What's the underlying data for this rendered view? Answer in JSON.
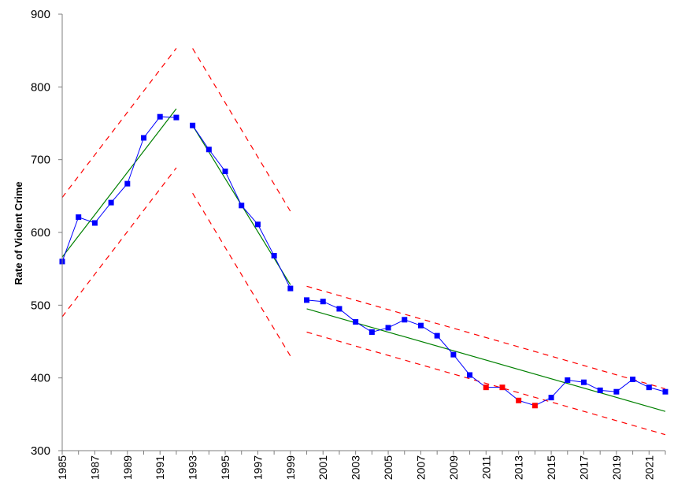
{
  "chart_data": {
    "type": "line",
    "title": "",
    "xlabel": "",
    "ylabel": "Rate of Violent Crime",
    "ylim": [
      300,
      900
    ],
    "xlim": [
      1985,
      2022
    ],
    "yticks": [
      300,
      400,
      500,
      600,
      700,
      800,
      900
    ],
    "xticks": [
      1985,
      1987,
      1989,
      1991,
      1993,
      1995,
      1997,
      1999,
      2001,
      2003,
      2005,
      2007,
      2009,
      2011,
      2013,
      2015,
      2017,
      2019,
      2021
    ],
    "grid": false,
    "legend": "none",
    "colors": {
      "data": "#0000ff",
      "signal": "#ff0000",
      "trend": "#008000",
      "limits": "#ff0000",
      "axis": "#7f7f7f"
    },
    "series": [
      {
        "style": "line-markers",
        "x": [
          1985,
          1986,
          1987,
          1988,
          1989,
          1990,
          1991,
          1992,
          1993,
          1994,
          1995,
          1996,
          1997,
          1998,
          1999,
          2000,
          2001,
          2002,
          2003,
          2004,
          2005,
          2006,
          2007,
          2008,
          2009,
          2010,
          2011,
          2012,
          2013,
          2014,
          2015,
          2016,
          2017,
          2018,
          2019,
          2020,
          2021,
          2022
        ],
        "values": [
          560,
          621,
          613,
          641,
          667,
          730,
          759,
          758,
          747,
          714,
          684,
          637,
          611,
          568,
          523,
          507,
          505,
          495,
          477,
          463,
          469,
          480,
          472,
          458,
          432,
          404,
          387,
          387,
          369,
          362,
          373,
          397,
          394,
          383,
          381,
          398,
          387,
          381
        ],
        "segments": [
          [
            1985,
            1992
          ],
          [
            1993,
            1999
          ],
          [
            2000,
            2022
          ]
        ],
        "highlight_x": [
          2011,
          2012,
          2013,
          2014
        ]
      },
      {
        "style": "trend",
        "segments": [
          {
            "x": [
              1985,
              1992
            ],
            "values": [
              566,
              770
            ]
          },
          {
            "x": [
              1993,
              1999
            ],
            "values": [
              747,
              528
            ]
          },
          {
            "x": [
              2000,
              2022
            ],
            "values": [
              495,
              354
            ]
          }
        ]
      },
      {
        "style": "upper-limit-dashed",
        "segments": [
          {
            "x": [
              1985,
              1992
            ],
            "values": [
              648,
              853
            ]
          },
          {
            "x": [
              1993,
              1999
            ],
            "values": [
              853,
              629
            ]
          },
          {
            "x": [
              2000,
              2022
            ],
            "values": [
              526,
              385
            ]
          }
        ]
      },
      {
        "style": "lower-limit-dashed",
        "segments": [
          {
            "x": [
              1985,
              1992
            ],
            "values": [
              484,
              689
            ]
          },
          {
            "x": [
              1993,
              1999
            ],
            "values": [
              654,
              430
            ]
          },
          {
            "x": [
              2000,
              2022
            ],
            "values": [
              463,
              322
            ]
          }
        ]
      }
    ]
  }
}
